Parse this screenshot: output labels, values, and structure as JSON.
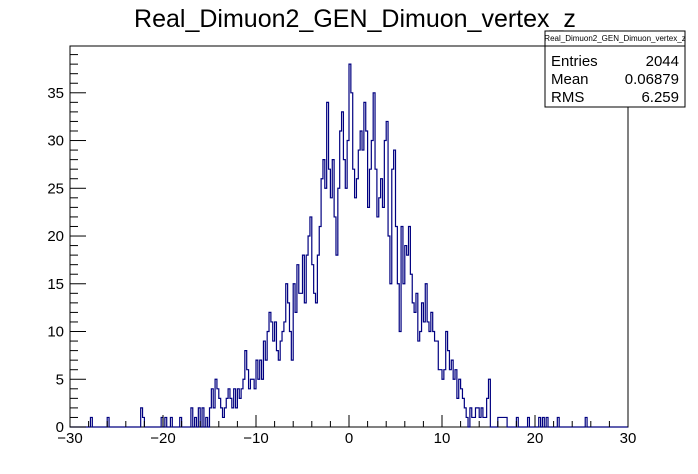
{
  "chart_data": {
    "type": "histogram",
    "title": "Real_Dimuon2_GEN_Dimuon_vertex_z",
    "xlim": [
      -30,
      30
    ],
    "ylim": [
      0,
      39.9
    ],
    "bin_width": 0.2,
    "x_ticks": [
      -30,
      -20,
      -10,
      0,
      10,
      20,
      30
    ],
    "y_ticks": [
      0,
      5,
      10,
      15,
      20,
      25,
      30,
      35
    ],
    "x_tick_labels": [
      "−30",
      "−20",
      "−10",
      "0",
      "10",
      "20",
      "30"
    ],
    "y_tick_labels": [
      "0",
      "5",
      "10",
      "15",
      "20",
      "25",
      "30",
      "35"
    ],
    "color": "#000080",
    "stats_box": {
      "name": "Real_Dimuon2_GEN_Dimuon_vertex_z",
      "rows": [
        {
          "label": "Entries",
          "value": "2044"
        },
        {
          "label": "Mean",
          "value": "0.06879"
        },
        {
          "label": "RMS",
          "value": "6.259"
        }
      ]
    },
    "bins": [
      [
        -27.8,
        1
      ],
      [
        -26.0,
        1
      ],
      [
        -22.4,
        2
      ],
      [
        -22.2,
        1
      ],
      [
        -20.2,
        1
      ],
      [
        -19.8,
        1
      ],
      [
        -19.2,
        1
      ],
      [
        -18.2,
        1
      ],
      [
        -17.0,
        2
      ],
      [
        -16.6,
        1
      ],
      [
        -16.2,
        2
      ],
      [
        -15.8,
        2
      ],
      [
        -15.4,
        1
      ],
      [
        -15.0,
        2
      ],
      [
        -14.8,
        4
      ],
      [
        -14.6,
        2
      ],
      [
        -14.4,
        5
      ],
      [
        -14.2,
        4
      ],
      [
        -14.0,
        3
      ],
      [
        -13.8,
        2
      ],
      [
        -13.6,
        1
      ],
      [
        -13.4,
        2
      ],
      [
        -13.2,
        3
      ],
      [
        -13.0,
        4
      ],
      [
        -12.8,
        3
      ],
      [
        -12.6,
        2
      ],
      [
        -12.4,
        4
      ],
      [
        -12.2,
        2
      ],
      [
        -12.0,
        4
      ],
      [
        -11.8,
        3
      ],
      [
        -11.6,
        4
      ],
      [
        -11.4,
        5
      ],
      [
        -11.2,
        8
      ],
      [
        -11.0,
        6
      ],
      [
        -10.8,
        4
      ],
      [
        -10.6,
        5
      ],
      [
        -10.4,
        5
      ],
      [
        -10.2,
        4
      ],
      [
        -10.0,
        7
      ],
      [
        -9.8,
        5
      ],
      [
        -9.6,
        7
      ],
      [
        -9.4,
        5
      ],
      [
        -9.2,
        9
      ],
      [
        -9.0,
        7
      ],
      [
        -8.8,
        10
      ],
      [
        -8.6,
        12
      ],
      [
        -8.4,
        11
      ],
      [
        -8.2,
        9
      ],
      [
        -8.0,
        11
      ],
      [
        -7.8,
        8
      ],
      [
        -7.6,
        7
      ],
      [
        -7.4,
        9
      ],
      [
        -7.2,
        10
      ],
      [
        -7.0,
        11
      ],
      [
        -6.8,
        15
      ],
      [
        -6.6,
        13
      ],
      [
        -6.4,
        10
      ],
      [
        -6.2,
        7
      ],
      [
        -6.0,
        15
      ],
      [
        -5.8,
        12
      ],
      [
        -5.6,
        17
      ],
      [
        -5.4,
        14
      ],
      [
        -5.2,
        14
      ],
      [
        -5.0,
        18
      ],
      [
        -4.8,
        13
      ],
      [
        -4.6,
        18
      ],
      [
        -4.4,
        20
      ],
      [
        -4.2,
        22
      ],
      [
        -4.0,
        17
      ],
      [
        -3.8,
        14
      ],
      [
        -3.6,
        13
      ],
      [
        -3.4,
        18
      ],
      [
        -3.2,
        21
      ],
      [
        -3.0,
        26
      ],
      [
        -2.8,
        28
      ],
      [
        -2.6,
        25
      ],
      [
        -2.4,
        34
      ],
      [
        -2.2,
        27
      ],
      [
        -2.0,
        24
      ],
      [
        -1.8,
        28
      ],
      [
        -1.6,
        22
      ],
      [
        -1.4,
        18
      ],
      [
        -1.2,
        25
      ],
      [
        -1.0,
        31
      ],
      [
        -0.8,
        33
      ],
      [
        -0.6,
        28
      ],
      [
        -0.4,
        25
      ],
      [
        -0.2,
        30
      ],
      [
        0.0,
        38
      ],
      [
        0.2,
        35
      ],
      [
        0.4,
        27
      ],
      [
        0.6,
        24
      ],
      [
        0.8,
        26
      ],
      [
        1.0,
        29
      ],
      [
        1.2,
        31
      ],
      [
        1.4,
        29
      ],
      [
        1.6,
        34
      ],
      [
        1.8,
        31
      ],
      [
        2.0,
        23
      ],
      [
        2.2,
        27
      ],
      [
        2.4,
        30
      ],
      [
        2.6,
        35
      ],
      [
        2.8,
        27
      ],
      [
        3.0,
        22
      ],
      [
        3.2,
        24
      ],
      [
        3.4,
        26
      ],
      [
        3.6,
        23
      ],
      [
        3.8,
        30
      ],
      [
        4.0,
        32
      ],
      [
        4.2,
        20
      ],
      [
        4.4,
        15
      ],
      [
        4.6,
        27
      ],
      [
        4.8,
        29
      ],
      [
        5.0,
        21
      ],
      [
        5.2,
        15
      ],
      [
        5.4,
        10
      ],
      [
        5.6,
        21
      ],
      [
        5.8,
        15
      ],
      [
        6.0,
        19
      ],
      [
        6.2,
        18
      ],
      [
        6.4,
        21
      ],
      [
        6.6,
        16
      ],
      [
        6.8,
        13
      ],
      [
        7.0,
        12
      ],
      [
        7.2,
        14
      ],
      [
        7.4,
        9
      ],
      [
        7.6,
        10
      ],
      [
        7.8,
        13
      ],
      [
        8.0,
        11
      ],
      [
        8.2,
        15
      ],
      [
        8.4,
        11
      ],
      [
        8.6,
        10
      ],
      [
        8.8,
        12
      ],
      [
        9.0,
        10
      ],
      [
        9.2,
        9
      ],
      [
        9.4,
        9
      ],
      [
        9.6,
        6
      ],
      [
        9.8,
        6
      ],
      [
        10.0,
        5
      ],
      [
        10.2,
        6
      ],
      [
        10.4,
        10
      ],
      [
        10.6,
        8
      ],
      [
        10.8,
        6
      ],
      [
        11.0,
        7
      ],
      [
        11.2,
        5
      ],
      [
        11.4,
        6
      ],
      [
        11.6,
        3
      ],
      [
        11.8,
        5
      ],
      [
        12.0,
        4
      ],
      [
        12.2,
        3
      ],
      [
        12.4,
        2
      ],
      [
        12.6,
        1
      ],
      [
        13.0,
        2
      ],
      [
        13.2,
        1
      ],
      [
        13.4,
        1
      ],
      [
        13.6,
        2
      ],
      [
        13.8,
        2
      ],
      [
        14.0,
        1
      ],
      [
        14.2,
        2
      ],
      [
        14.4,
        1
      ],
      [
        14.6,
        1
      ],
      [
        14.8,
        3
      ],
      [
        15.0,
        5
      ],
      [
        16.0,
        1
      ],
      [
        16.2,
        1
      ],
      [
        16.4,
        1
      ],
      [
        16.6,
        1
      ],
      [
        16.8,
        1
      ],
      [
        18.0,
        1
      ],
      [
        19.2,
        1
      ],
      [
        20.4,
        1
      ],
      [
        20.8,
        1
      ],
      [
        21.2,
        1
      ],
      [
        22.4,
        1
      ],
      [
        25.4,
        1
      ]
    ]
  }
}
